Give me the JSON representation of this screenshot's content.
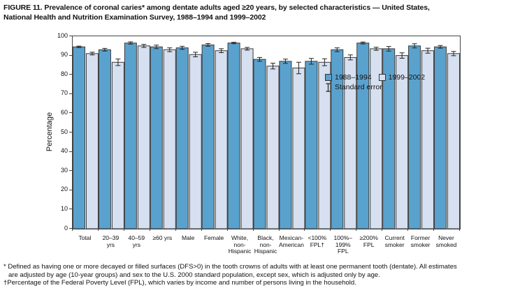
{
  "title": {
    "text": "FIGURE 11. Prevalence of coronal caries* among dentate adults aged ≥20 years, by selected characteristics — United States,\nNational Health and Nutrition Examination Survey, 1988–1994 and 1999–2002"
  },
  "legend": {
    "se_label": "Standard error"
  },
  "y_axis": {
    "label": "Percentage",
    "ticks": [
      0,
      10,
      20,
      30,
      40,
      50,
      60,
      70,
      80,
      90,
      100
    ]
  },
  "chart_data": {
    "type": "bar",
    "title": "Prevalence of coronal caries among dentate adults aged ≥20 years, 1988–1994 and 1999–2002",
    "xlabel": "",
    "ylabel": "Percentage",
    "ylim": [
      0,
      100
    ],
    "grid": false,
    "legend_position": "top-inside",
    "error_bars": true,
    "categories": [
      "Total",
      "20–39\nyrs",
      "40–59\nyrs",
      "≥60 yrs",
      "Male",
      "Female",
      "White,\nnon-\nHispanic",
      "Black,\nnon-\nHispanic",
      "Mexican-\nAmerican",
      "<100%\nFPL†",
      "100%–\n199%\nFPL",
      "≥200%\nFPL",
      "Current\nsmoker",
      "Former\nsmoker",
      "Never\nsmoked"
    ],
    "series": [
      {
        "name": "1988–1994",
        "color": "#5AA2CE",
        "values": [
          94.5,
          93,
          96.5,
          94.5,
          94,
          95.5,
          96.5,
          88,
          87,
          87,
          93,
          96.5,
          93.5,
          95,
          94.5
        ],
        "se": [
          0.4,
          0.7,
          0.6,
          0.9,
          0.8,
          0.7,
          0.4,
          1.0,
          1.1,
          1.5,
          1.0,
          0.5,
          1.2,
          1.1,
          0.7
        ]
      },
      {
        "name": "1999–2002",
        "color": "#D6E0F0",
        "values": [
          91,
          86.5,
          95,
          93,
          90.5,
          92.5,
          93.5,
          84.5,
          83.5,
          86.5,
          89,
          93.5,
          90,
          92.5,
          91
        ],
        "se": [
          0.7,
          1.7,
          0.8,
          1.0,
          1.2,
          1.0,
          0.7,
          1.5,
          3.0,
          1.8,
          1.3,
          0.8,
          1.4,
          1.3,
          1.1
        ]
      }
    ]
  },
  "footnotes": [
    "* Defined as having one or more decayed or filled surfaces (DFS>0) in the tooth crowns of adults with at least one permanent tooth (dentate). All estimates",
    "are adjusted by age (10-year groups) and sex to the U.S. 2000 standard population, except sex, which is adjusted only by age.",
    "†Percentage of the Federal Poverty Level (FPL), which varies by income and number of persons living in the household."
  ]
}
